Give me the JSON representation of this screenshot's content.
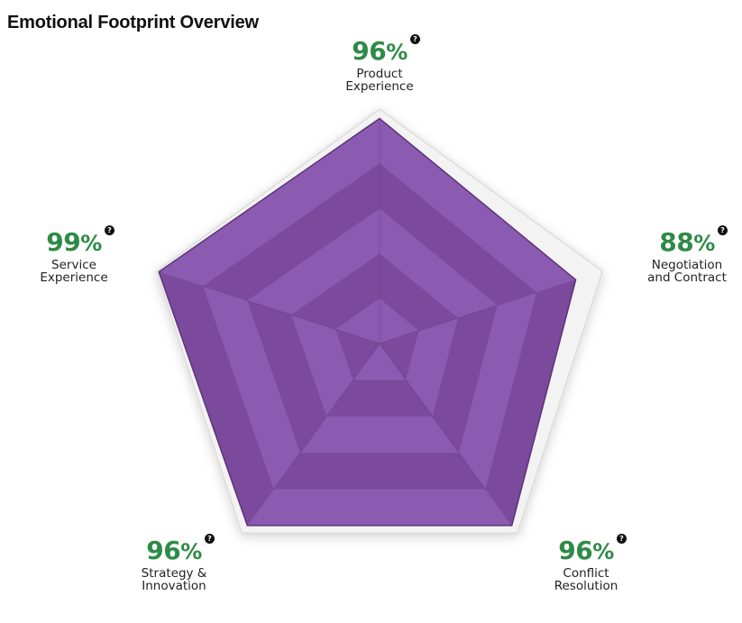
{
  "title": "Emotional Footprint Overview",
  "chart_data": {
    "type": "radar",
    "max": 100,
    "categories": [
      "Product\nExperience",
      "Negotiation\nand Contract",
      "Conflict\nResolution",
      "Strategy &\nInnovation",
      "Service\nExperience"
    ],
    "values": [
      96,
      88,
      96,
      96,
      99
    ],
    "value_labels": [
      "96",
      "88",
      "96",
      "96",
      "99"
    ],
    "unit": "%"
  },
  "colors": {
    "fill": "#7b4a9c",
    "fill_dark": "#5e3378",
    "fill_light": "#8a5bb0",
    "grid": "#f3f3f3",
    "grid_stroke": "#dcdcdc",
    "value_text": "#2e8b47"
  },
  "icons": {
    "help": "question-circle-icon"
  }
}
